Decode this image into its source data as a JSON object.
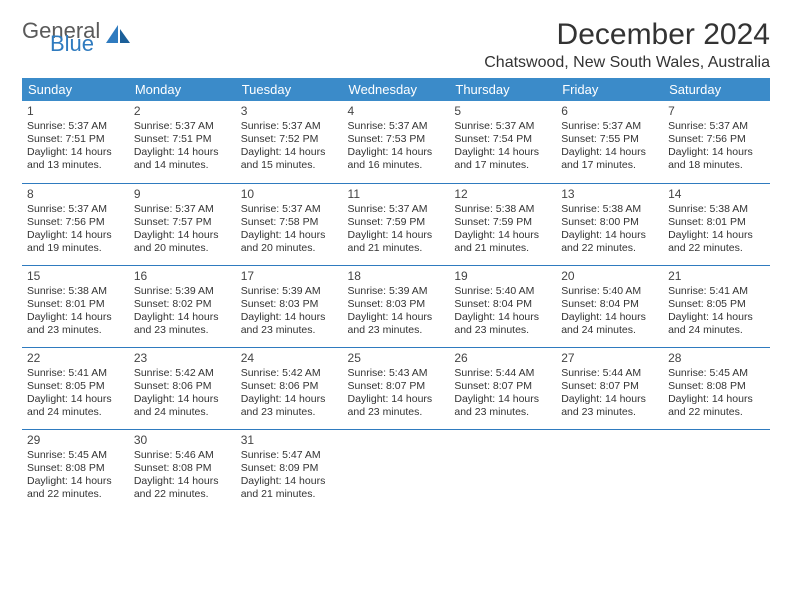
{
  "logo": {
    "text1": "General",
    "text2": "Blue"
  },
  "title": "December 2024",
  "subtitle": "Chatswood, New South Wales, Australia",
  "header_bg": "#3b8bc9",
  "header_text_color": "#ffffff",
  "border_color": "#2f7bbf",
  "day_headers": [
    "Sunday",
    "Monday",
    "Tuesday",
    "Wednesday",
    "Thursday",
    "Friday",
    "Saturday"
  ],
  "weeks": [
    [
      {
        "n": "1",
        "sr": "5:37 AM",
        "ss": "7:51 PM",
        "dl": "14 hours and 13 minutes."
      },
      {
        "n": "2",
        "sr": "5:37 AM",
        "ss": "7:51 PM",
        "dl": "14 hours and 14 minutes."
      },
      {
        "n": "3",
        "sr": "5:37 AM",
        "ss": "7:52 PM",
        "dl": "14 hours and 15 minutes."
      },
      {
        "n": "4",
        "sr": "5:37 AM",
        "ss": "7:53 PM",
        "dl": "14 hours and 16 minutes."
      },
      {
        "n": "5",
        "sr": "5:37 AM",
        "ss": "7:54 PM",
        "dl": "14 hours and 17 minutes."
      },
      {
        "n": "6",
        "sr": "5:37 AM",
        "ss": "7:55 PM",
        "dl": "14 hours and 17 minutes."
      },
      {
        "n": "7",
        "sr": "5:37 AM",
        "ss": "7:56 PM",
        "dl": "14 hours and 18 minutes."
      }
    ],
    [
      {
        "n": "8",
        "sr": "5:37 AM",
        "ss": "7:56 PM",
        "dl": "14 hours and 19 minutes."
      },
      {
        "n": "9",
        "sr": "5:37 AM",
        "ss": "7:57 PM",
        "dl": "14 hours and 20 minutes."
      },
      {
        "n": "10",
        "sr": "5:37 AM",
        "ss": "7:58 PM",
        "dl": "14 hours and 20 minutes."
      },
      {
        "n": "11",
        "sr": "5:37 AM",
        "ss": "7:59 PM",
        "dl": "14 hours and 21 minutes."
      },
      {
        "n": "12",
        "sr": "5:38 AM",
        "ss": "7:59 PM",
        "dl": "14 hours and 21 minutes."
      },
      {
        "n": "13",
        "sr": "5:38 AM",
        "ss": "8:00 PM",
        "dl": "14 hours and 22 minutes."
      },
      {
        "n": "14",
        "sr": "5:38 AM",
        "ss": "8:01 PM",
        "dl": "14 hours and 22 minutes."
      }
    ],
    [
      {
        "n": "15",
        "sr": "5:38 AM",
        "ss": "8:01 PM",
        "dl": "14 hours and 23 minutes."
      },
      {
        "n": "16",
        "sr": "5:39 AM",
        "ss": "8:02 PM",
        "dl": "14 hours and 23 minutes."
      },
      {
        "n": "17",
        "sr": "5:39 AM",
        "ss": "8:03 PM",
        "dl": "14 hours and 23 minutes."
      },
      {
        "n": "18",
        "sr": "5:39 AM",
        "ss": "8:03 PM",
        "dl": "14 hours and 23 minutes."
      },
      {
        "n": "19",
        "sr": "5:40 AM",
        "ss": "8:04 PM",
        "dl": "14 hours and 23 minutes."
      },
      {
        "n": "20",
        "sr": "5:40 AM",
        "ss": "8:04 PM",
        "dl": "14 hours and 24 minutes."
      },
      {
        "n": "21",
        "sr": "5:41 AM",
        "ss": "8:05 PM",
        "dl": "14 hours and 24 minutes."
      }
    ],
    [
      {
        "n": "22",
        "sr": "5:41 AM",
        "ss": "8:05 PM",
        "dl": "14 hours and 24 minutes."
      },
      {
        "n": "23",
        "sr": "5:42 AM",
        "ss": "8:06 PM",
        "dl": "14 hours and 24 minutes."
      },
      {
        "n": "24",
        "sr": "5:42 AM",
        "ss": "8:06 PM",
        "dl": "14 hours and 23 minutes."
      },
      {
        "n": "25",
        "sr": "5:43 AM",
        "ss": "8:07 PM",
        "dl": "14 hours and 23 minutes."
      },
      {
        "n": "26",
        "sr": "5:44 AM",
        "ss": "8:07 PM",
        "dl": "14 hours and 23 minutes."
      },
      {
        "n": "27",
        "sr": "5:44 AM",
        "ss": "8:07 PM",
        "dl": "14 hours and 23 minutes."
      },
      {
        "n": "28",
        "sr": "5:45 AM",
        "ss": "8:08 PM",
        "dl": "14 hours and 22 minutes."
      }
    ],
    [
      {
        "n": "29",
        "sr": "5:45 AM",
        "ss": "8:08 PM",
        "dl": "14 hours and 22 minutes."
      },
      {
        "n": "30",
        "sr": "5:46 AM",
        "ss": "8:08 PM",
        "dl": "14 hours and 22 minutes."
      },
      {
        "n": "31",
        "sr": "5:47 AM",
        "ss": "8:09 PM",
        "dl": "14 hours and 21 minutes."
      },
      null,
      null,
      null,
      null
    ]
  ]
}
